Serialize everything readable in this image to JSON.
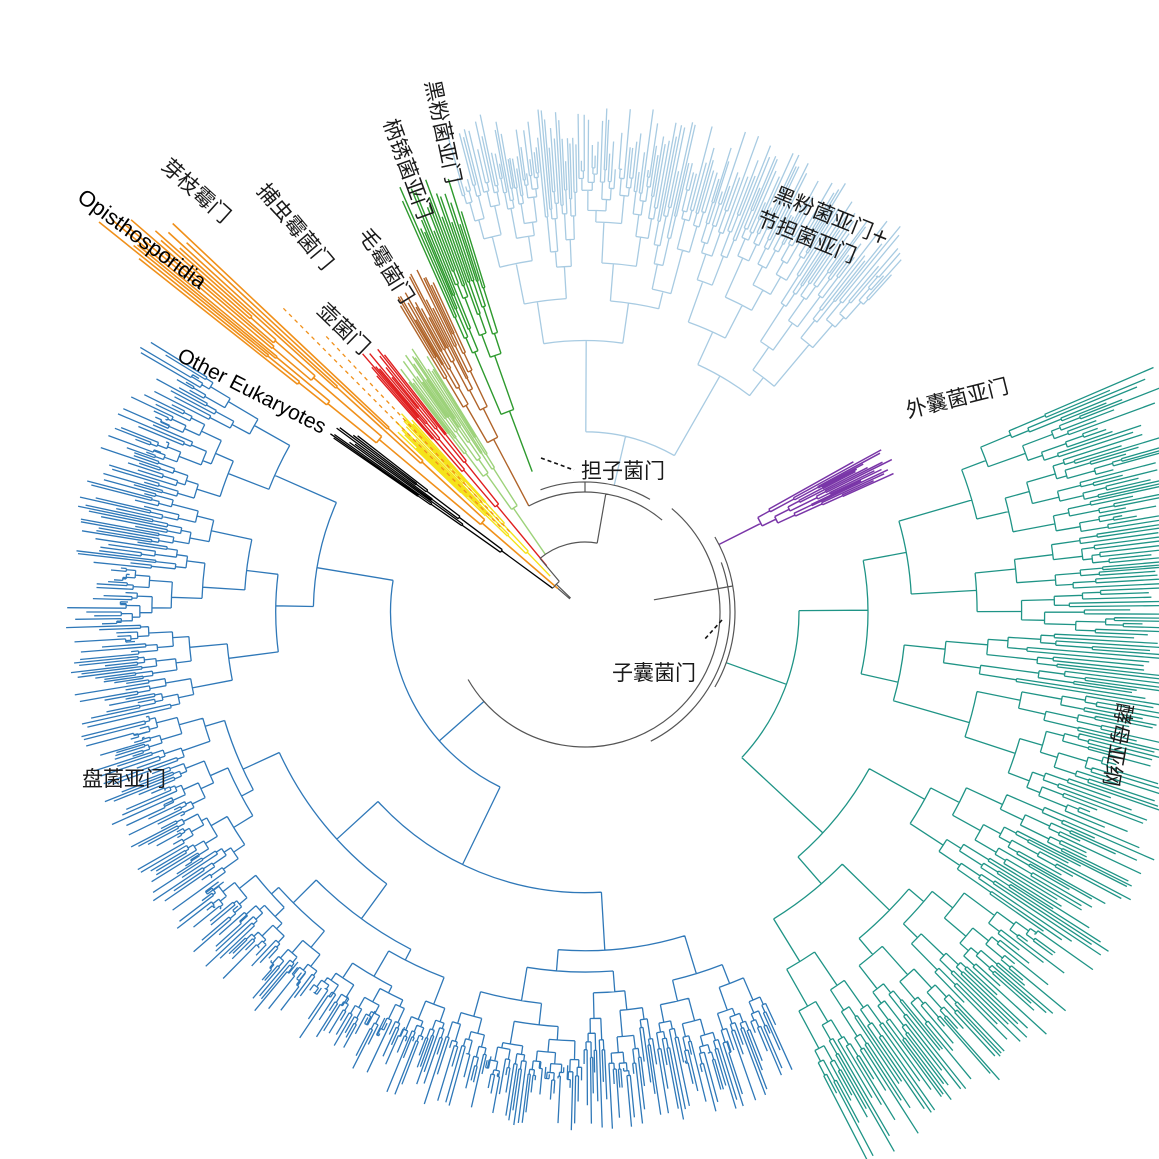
{
  "clades": [
    {
      "key": "orange",
      "color": "#f0901a",
      "label": "芽枝霉门"
    },
    {
      "key": "opistho",
      "color": "#f0901a",
      "label": "Opisthosporidia"
    },
    {
      "key": "zoopago",
      "color": "#f0901a",
      "label": "捕虫霉菌门"
    },
    {
      "key": "chytrid",
      "color": "#f5e21a",
      "label": "壶菌门"
    },
    {
      "key": "mucoro",
      "color": "#e02020",
      "label": "毛霉菌门"
    },
    {
      "key": "lightgreen",
      "color": "#9dd27a",
      "label": ""
    },
    {
      "key": "puccinio",
      "color": "#b0642a",
      "label": "柄锈菌亚门"
    },
    {
      "key": "ustilago",
      "color": "#2e9a2e",
      "label": "黑粉菌亚门"
    },
    {
      "key": "agarico",
      "color": "#a8cbe2",
      "label": "黑粉菌亚门+\n节担菌亚门"
    },
    {
      "key": "taphrino",
      "color": "#7a36a8",
      "label": "外囊菌亚门"
    },
    {
      "key": "saccharo",
      "color": "#1f9486",
      "label": "酵母亚纲"
    },
    {
      "key": "pezizo",
      "color": "#2f78b8",
      "label": "盘菌亚门"
    },
    {
      "key": "other",
      "color": "#000000",
      "label": "Other Eukaryotes"
    }
  ],
  "labels": {
    "chytridiomycota_blast": "芽枝霉门",
    "opisthosporidia": "Opisthosporidia",
    "zoopagomycota": "捕虫霉菌门",
    "chytridiomycota": "壶菌门",
    "mucoromycota": "毛霉菌门",
    "other_eukaryotes": "Other Eukaryotes",
    "pucciniomycotina": "柄锈菌亚门",
    "ustilaginomycotina": "黑粉菌亚门",
    "agaricomycotina_line1": "黑粉菌亚门+",
    "agaricomycotina_line2": "节担菌亚门",
    "basidiomycota": "担子菌门",
    "taphrinomycotina": "外囊菌亚门",
    "ascomycota": "子囊菌门",
    "saccharomycetes": "酵母亚纲",
    "pezizomycotina": "盘菌亚门"
  }
}
